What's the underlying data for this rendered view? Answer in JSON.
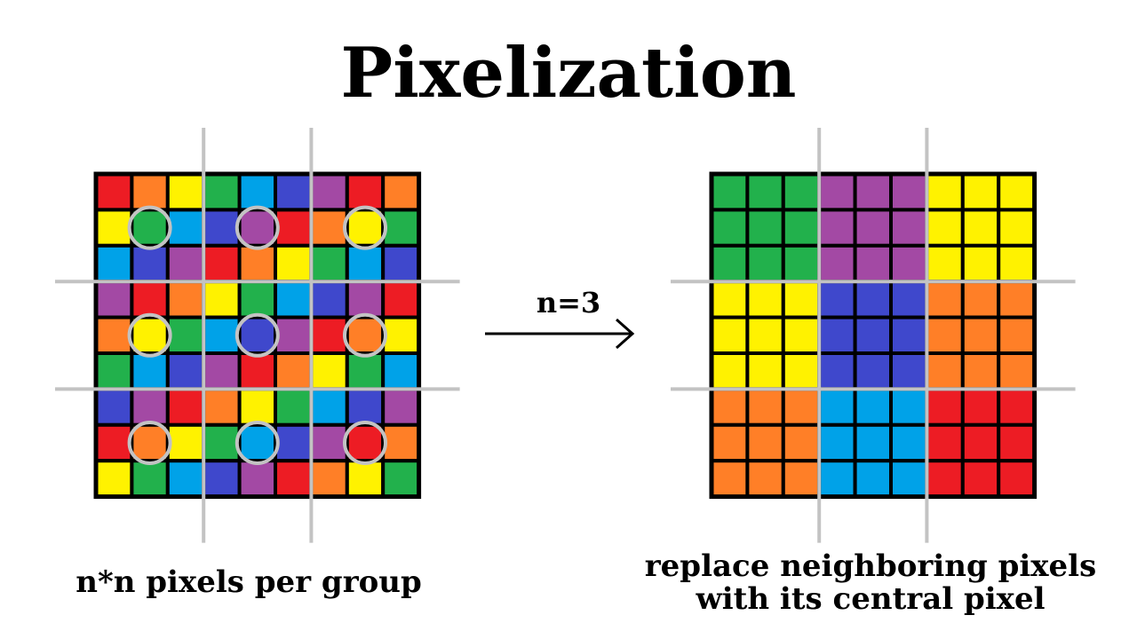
{
  "title": "Pixelization",
  "arrow_label": "n=3",
  "caption_left": "n*n pixels per group",
  "caption_right_line1": "replace neighboring pixels",
  "caption_right_line2": "with its central pixel",
  "n": 3,
  "palette": {
    "R": "#ed1c24",
    "O": "#ff7f27",
    "Y": "#fff200",
    "G": "#22b14c",
    "C": "#00a2e8",
    "B": "#3f48cc",
    "P": "#a349a4"
  },
  "input_grid": [
    [
      "R",
      "O",
      "Y",
      "G",
      "C",
      "B",
      "P",
      "R",
      "O"
    ],
    [
      "Y",
      "G",
      "C",
      "B",
      "P",
      "R",
      "O",
      "Y",
      "G"
    ],
    [
      "C",
      "B",
      "P",
      "R",
      "O",
      "Y",
      "G",
      "C",
      "B"
    ],
    [
      "P",
      "R",
      "O",
      "Y",
      "G",
      "C",
      "B",
      "P",
      "R"
    ],
    [
      "O",
      "Y",
      "G",
      "C",
      "B",
      "P",
      "R",
      "O",
      "Y"
    ],
    [
      "G",
      "C",
      "B",
      "P",
      "R",
      "O",
      "Y",
      "G",
      "C"
    ],
    [
      "B",
      "P",
      "R",
      "O",
      "Y",
      "G",
      "C",
      "B",
      "P"
    ],
    [
      "R",
      "O",
      "Y",
      "G",
      "C",
      "B",
      "P",
      "R",
      "O"
    ],
    [
      "Y",
      "G",
      "C",
      "B",
      "P",
      "R",
      "O",
      "Y",
      "G"
    ]
  ],
  "output_grid": [
    [
      "G",
      "G",
      "G",
      "P",
      "P",
      "P",
      "Y",
      "Y",
      "Y"
    ],
    [
      "G",
      "G",
      "G",
      "P",
      "P",
      "P",
      "Y",
      "Y",
      "Y"
    ],
    [
      "G",
      "G",
      "G",
      "P",
      "P",
      "P",
      "Y",
      "Y",
      "Y"
    ],
    [
      "Y",
      "Y",
      "Y",
      "B",
      "B",
      "B",
      "O",
      "O",
      "O"
    ],
    [
      "Y",
      "Y",
      "Y",
      "B",
      "B",
      "B",
      "O",
      "O",
      "O"
    ],
    [
      "Y",
      "Y",
      "Y",
      "B",
      "B",
      "B",
      "O",
      "O",
      "O"
    ],
    [
      "O",
      "O",
      "O",
      "C",
      "C",
      "C",
      "R",
      "R",
      "R"
    ],
    [
      "O",
      "O",
      "O",
      "C",
      "C",
      "C",
      "R",
      "R",
      "R"
    ],
    [
      "O",
      "O",
      "O",
      "C",
      "C",
      "C",
      "R",
      "R",
      "R"
    ]
  ],
  "line_color": "#c3c3c3",
  "border_color": "#000000"
}
